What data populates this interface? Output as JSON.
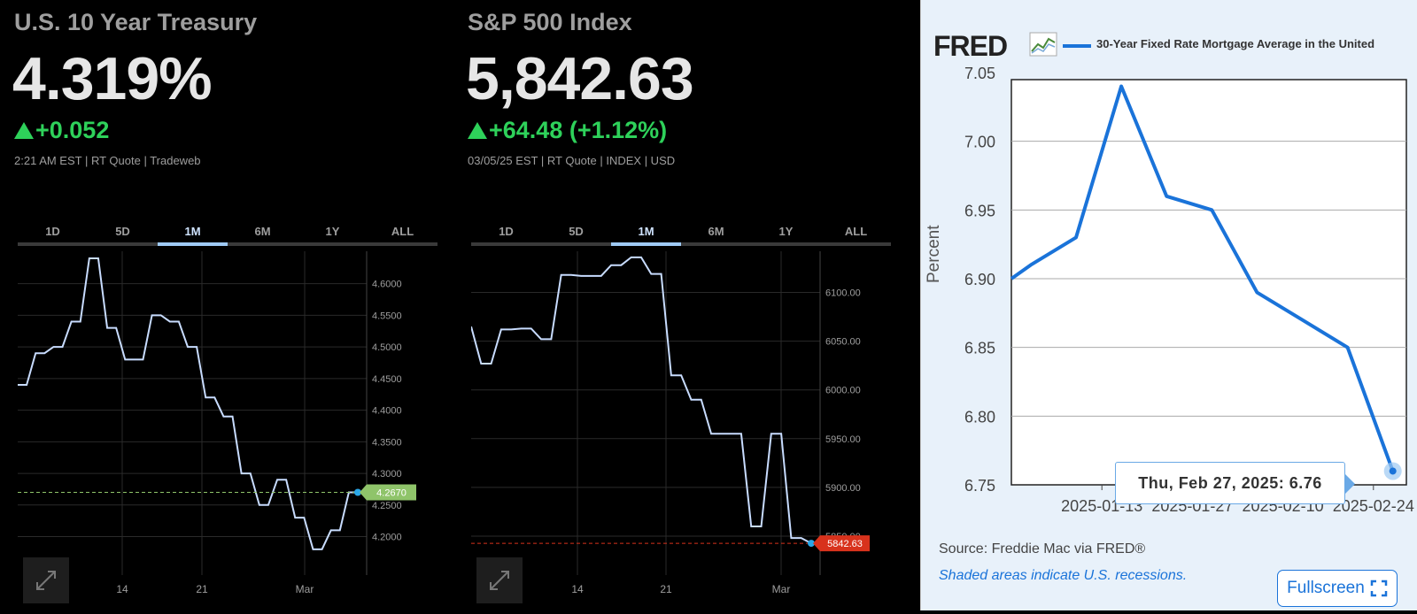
{
  "treasury": {
    "name": "U.S. 10 Year Treasury",
    "value": "4.319%",
    "change": "+0.052",
    "meta": "2:21 AM EST | RT Quote | Tradeweb",
    "tabs": [
      "1D",
      "5D",
      "1M",
      "6M",
      "1Y",
      "ALL"
    ],
    "active_tab": "1M",
    "colors": {
      "line": "#c8dcff",
      "marker": "#2aa7e8",
      "badge": "#8fc46a"
    },
    "chart_data": {
      "type": "line",
      "y_ticks": [
        "4.6000",
        "4.5500",
        "4.5000",
        "4.4500",
        "4.4000",
        "4.3500",
        "4.3000",
        "4.2500",
        "4.2000"
      ],
      "x_ticks": [
        "14",
        "21",
        "Mar"
      ],
      "ylim": [
        4.17,
        4.64
      ],
      "last_value_label": "4.2670",
      "values": [
        4.44,
        4.44,
        4.49,
        4.49,
        4.5,
        4.5,
        4.54,
        4.54,
        4.64,
        4.64,
        4.53,
        4.53,
        4.48,
        4.48,
        4.48,
        4.55,
        4.55,
        4.54,
        4.54,
        4.5,
        4.5,
        4.42,
        4.42,
        4.39,
        4.39,
        4.3,
        4.3,
        4.25,
        4.25,
        4.29,
        4.29,
        4.23,
        4.23,
        4.18,
        4.18,
        4.21,
        4.21,
        4.27,
        4.27
      ]
    }
  },
  "sp500": {
    "name": "S&P 500 Index",
    "value": "5,842.63",
    "change": "+64.48 (+1.12%)",
    "meta": "03/05/25 EST | RT Quote | INDEX | USD",
    "tabs": [
      "1D",
      "5D",
      "1M",
      "6M",
      "1Y",
      "ALL"
    ],
    "active_tab": "1M",
    "colors": {
      "line": "#c8dcff",
      "marker": "#2aa7e8",
      "badge": "#d8321c"
    },
    "chart_data": {
      "type": "line",
      "y_ticks": [
        "6100.00",
        "6050.00",
        "6000.00",
        "5950.00",
        "5900.00",
        "5850.00"
      ],
      "x_ticks": [
        "14",
        "21",
        "Mar"
      ],
      "ylim": [
        5830,
        6135
      ],
      "last_value_label": "5842.63",
      "values": [
        6065,
        6027,
        6027,
        6062,
        6062,
        6063,
        6063,
        6052,
        6052,
        6118,
        6118,
        6117,
        6117,
        6117,
        6128,
        6128,
        6136,
        6136,
        6119,
        6119,
        6015,
        6015,
        5990,
        5990,
        5955,
        5955,
        5955,
        5955,
        5860,
        5860,
        5955,
        5955,
        5848,
        5848,
        5842.63
      ]
    }
  },
  "fred": {
    "logo": "FRED",
    "legend": "30-Year Fixed Rate Mortgage Average in the United",
    "ylabel": "Percent",
    "source": "Source: Freddie Mac via FRED®",
    "recessions": "Shaded areas indicate U.S. recessions.",
    "fullscreen": "Fullscreen",
    "tooltip": "Thu, Feb 27, 2025:  6.76",
    "colors": {
      "line": "#1a73d9"
    },
    "chart_data": {
      "type": "line",
      "y_ticks": [
        "7.05",
        "7.00",
        "6.95",
        "6.90",
        "6.85",
        "6.80",
        "6.75"
      ],
      "x_ticks": [
        "2025-01-13",
        "2025-01-27",
        "2025-02-10",
        "2025-02-24"
      ],
      "ylim": [
        6.75,
        7.05
      ],
      "dates": [
        "2024-12-30",
        "2025-01-02",
        "2025-01-09",
        "2025-01-16",
        "2025-01-23",
        "2025-01-30",
        "2025-02-06",
        "2025-02-13",
        "2025-02-20",
        "2025-02-27"
      ],
      "values": [
        6.9,
        6.91,
        6.93,
        7.04,
        6.96,
        6.95,
        6.89,
        6.87,
        6.85,
        6.76
      ]
    }
  }
}
